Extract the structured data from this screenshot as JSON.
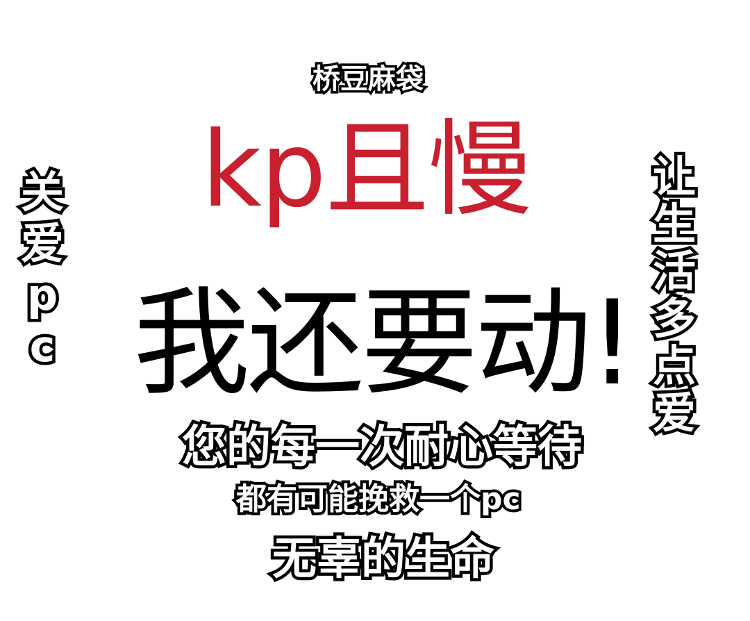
{
  "top_small": "桥豆麻袋",
  "headline_red": "kp且慢",
  "headline_black": "我还要动!",
  "left_vertical": [
    "关",
    "爱",
    "p",
    "c"
  ],
  "right_vertical": [
    "让",
    "生",
    "活",
    "多",
    "点",
    "爱"
  ],
  "line1": "您的每一次耐心等待",
  "line2": "都有可能挽救一个pc",
  "line3": "无辜的生命",
  "colors": {
    "red": "#c8202f",
    "black": "#000000",
    "background": "#ffffff"
  }
}
